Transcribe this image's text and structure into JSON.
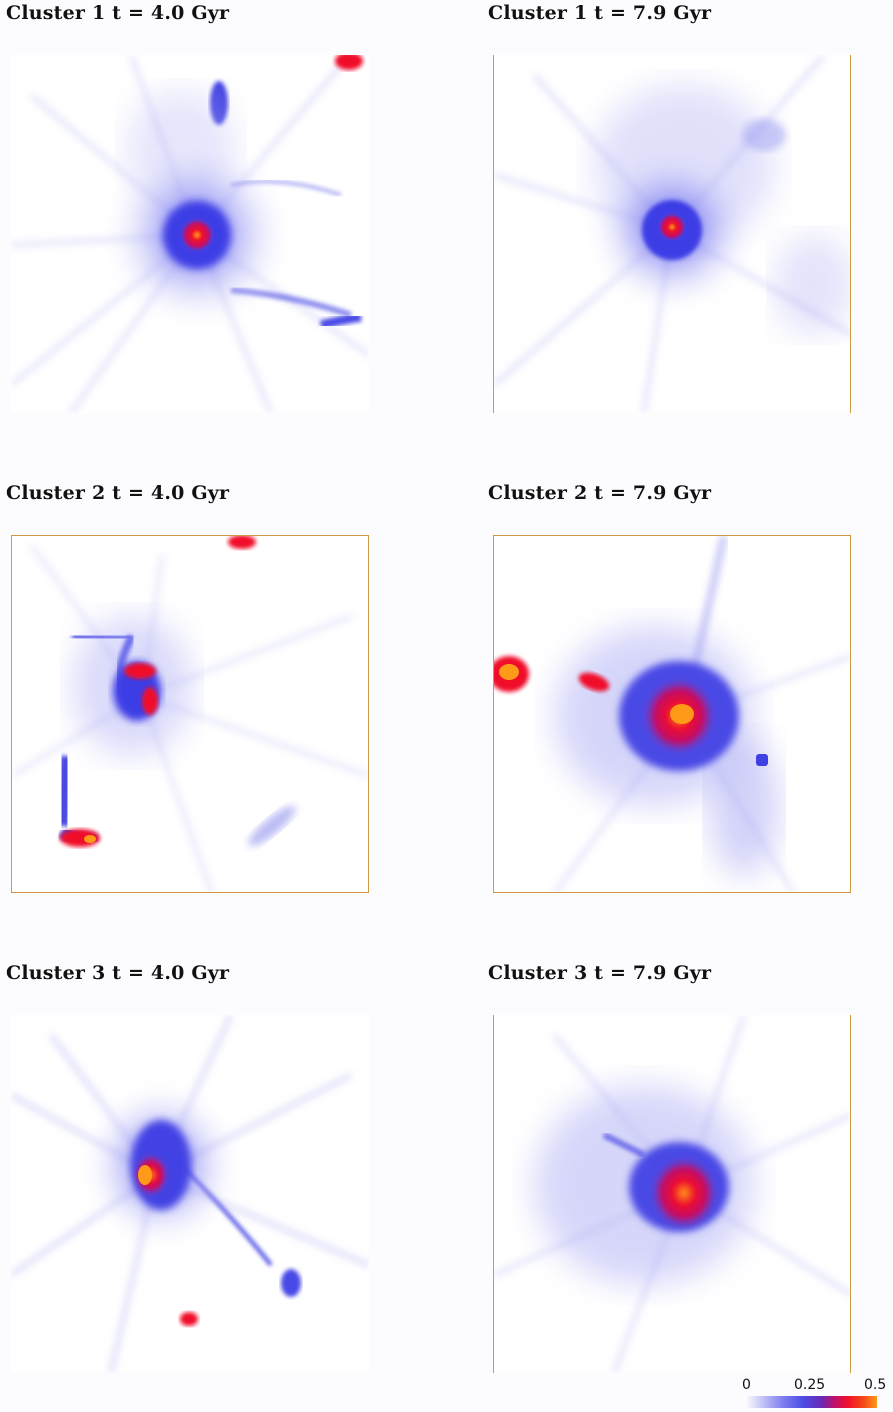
{
  "panels": [
    {
      "id": "c1-t4",
      "title": "Cluster 1 t = 4.0 Gyr"
    },
    {
      "id": "c1-t79",
      "title": "Cluster 1 t = 7.9 Gyr"
    },
    {
      "id": "c2-t4",
      "title": "Cluster 2 t = 4.0 Gyr"
    },
    {
      "id": "c2-t79",
      "title": "Cluster 2 t = 7.9 Gyr"
    },
    {
      "id": "c3-t4",
      "title": "Cluster 3 t = 4.0 Gyr"
    },
    {
      "id": "c3-t79",
      "title": "Cluster 3 t = 7.9 Gyr"
    }
  ],
  "colorbar": {
    "ticks": [
      "0",
      "0.25",
      "0.5"
    ],
    "colors": [
      "#ffffff",
      "#8282f0",
      "#4c4ce6",
      "#c0106a",
      "#f0102a",
      "#ff9a18"
    ]
  }
}
